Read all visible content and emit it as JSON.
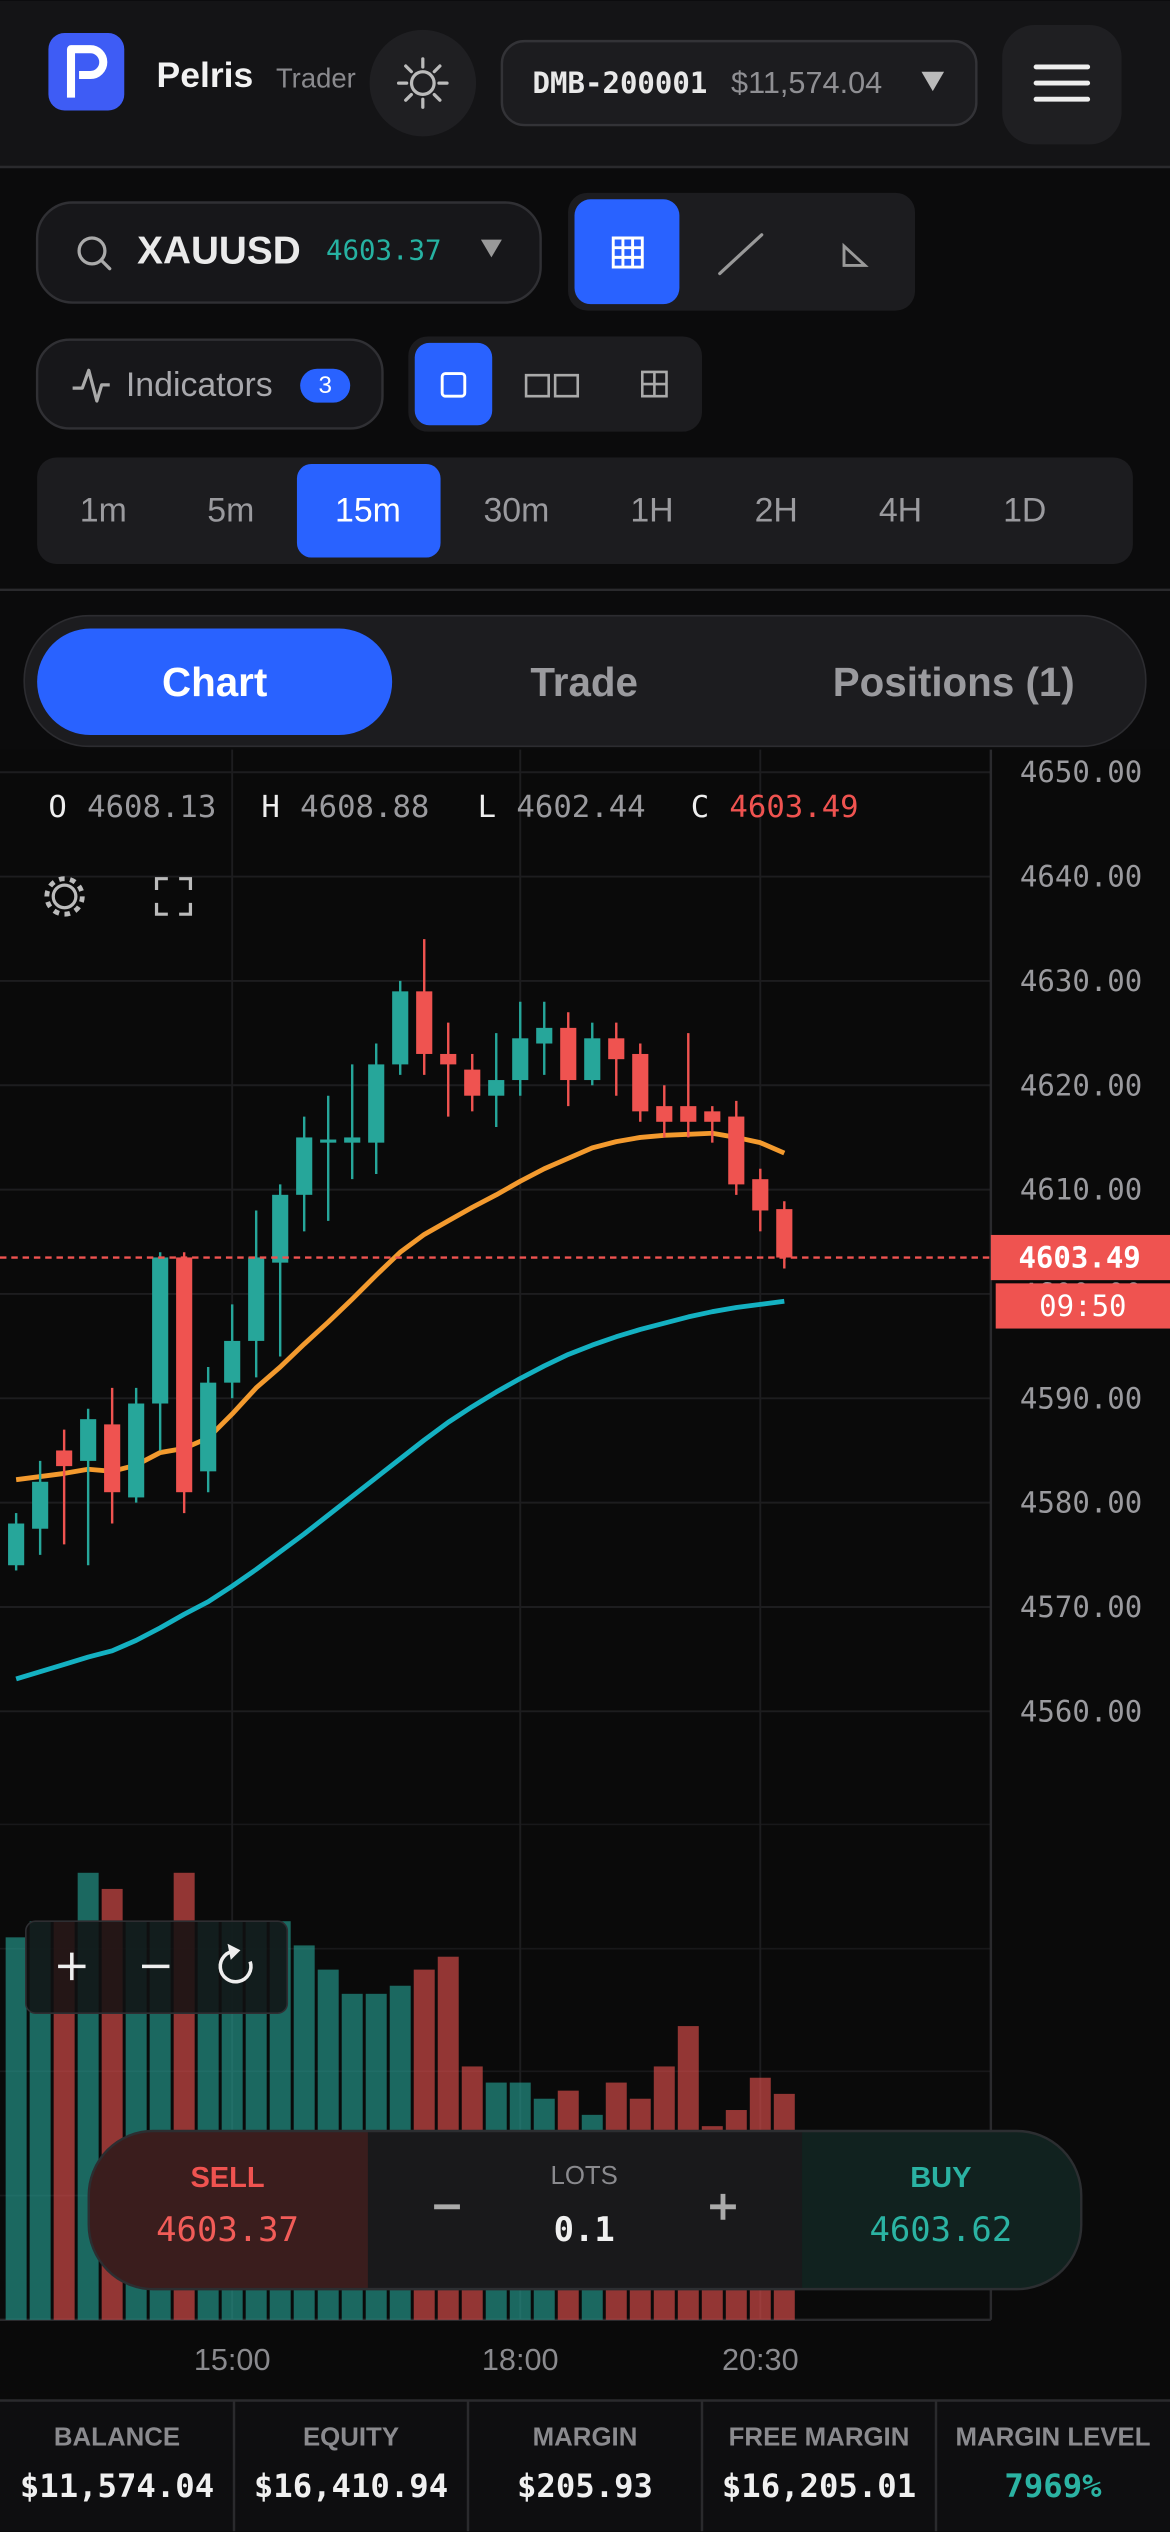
{
  "header": {
    "brand": "Pelris",
    "brand_sub": "Trader",
    "account_id": "DMB-200001",
    "account_balance": "$11,574.04"
  },
  "toolbar": {
    "symbol": "XAUUSD",
    "symbol_price": "4603.37",
    "indicators_label": "Indicators",
    "indicators_count": 3,
    "timeframes": [
      "1m",
      "5m",
      "15m",
      "30m",
      "1H",
      "2H",
      "4H",
      "1D"
    ]
  },
  "tabs": [
    "Chart",
    "Trade",
    "Positions (1)"
  ],
  "chart_data": {
    "type": "candlestick",
    "ohlc_labels": [
      "O",
      "H",
      "L",
      "C"
    ],
    "categories": [
      null,
      null,
      null,
      null,
      null,
      null,
      null,
      null,
      null,
      "15:00",
      null,
      null,
      null,
      null,
      null,
      null,
      null,
      null,
      null,
      null,
      null,
      "18:00",
      null,
      null,
      null,
      null,
      null,
      null,
      null,
      null,
      null,
      "20:30",
      null
    ],
    "open": [
      4574,
      4577.5,
      4585,
      4584,
      4587.5,
      4580.5,
      4589.5,
      4603.5,
      4583,
      4591.5,
      4595.5,
      4603,
      4609.5,
      4614.5,
      4614.5,
      4614.5,
      4622,
      4629,
      4623,
      4621.5,
      4619,
      4620.5,
      4624,
      4625.5,
      4620.5,
      4624.5,
      4623,
      4618,
      4618,
      4617.5,
      4617,
      4611,
      4608.13
    ],
    "high": [
      4579,
      4584,
      4587,
      4589,
      4591,
      4591,
      4604,
      4604,
      4593,
      4599,
      4608,
      4610.5,
      4617,
      4619,
      4622,
      4624,
      4630,
      4634,
      4626,
      4623,
      4625,
      4628,
      4628,
      4627,
      4626,
      4626,
      4624,
      4620,
      4625,
      4618,
      4618.5,
      4612,
      4608.88
    ],
    "low": [
      4573.5,
      4575,
      4576,
      4574,
      4578,
      4580,
      4585,
      4579,
      4581,
      4590,
      4592,
      4594,
      4606,
      4607,
      4611,
      4611.5,
      4621,
      4621,
      4617,
      4617.5,
      4616,
      4619,
      4621,
      4618,
      4620,
      4619,
      4616.5,
      4615,
      4615,
      4614.5,
      4609.5,
      4606,
      4602.44
    ],
    "close": [
      4578,
      4582,
      4583.5,
      4588,
      4581,
      4589.5,
      4603.5,
      4581,
      4591.5,
      4595.5,
      4603.5,
      4609.5,
      4615,
      4614.8,
      4615,
      4622,
      4629,
      4623,
      4622,
      4619,
      4620.5,
      4624.5,
      4625.5,
      4620.5,
      4624.5,
      4622.5,
      4617.5,
      4616.5,
      4616.5,
      4616.5,
      4610.5,
      4608,
      4603.49
    ],
    "up_color": "#26a69a",
    "down_color": "#ef5350",
    "lines": [
      {
        "color": "#f39a2e",
        "values": [
          4582.2,
          4582.5,
          4582.8,
          4583.2,
          4583.0,
          4583.6,
          4584.8,
          4585.2,
          4586.2,
          4588.5,
          4591,
          4593,
          4595.2,
          4597.3,
          4599.5,
          4601.8,
          4604,
          4605.7,
          4607,
          4608.3,
          4609.5,
          4610.8,
          4612,
          4613,
          4614,
          4614.6,
          4615,
          4615.2,
          4615.3,
          4615.4,
          4615,
          4614.5,
          4613.5
        ]
      },
      {
        "color": "#14b1c2",
        "values": [
          4563.1,
          4563.8,
          4564.5,
          4565.2,
          4565.8,
          4566.8,
          4568,
          4569.3,
          4570.5,
          4572,
          4573.6,
          4575.3,
          4577,
          4578.8,
          4580.6,
          4582.4,
          4584.2,
          4586,
          4587.7,
          4589.2,
          4590.6,
          4591.9,
          4593.1,
          4594.2,
          4595.1,
          4595.9,
          4596.6,
          4597.2,
          4597.8,
          4598.3,
          4598.7,
          4599.0,
          4599.3
        ]
      }
    ],
    "volume": [
      237,
      247,
      247,
      277,
      267,
      247,
      247,
      277,
      247,
      247,
      247,
      247,
      232,
      217,
      202,
      202,
      207,
      217,
      225,
      157,
      147,
      147,
      137,
      142,
      127,
      147,
      137,
      157,
      182,
      120,
      130,
      150,
      140
    ],
    "volume_ylim": [
      0,
      327
    ],
    "ylim": [
      4552.26,
      4652.17
    ],
    "yticks": [
      {
        "value": 4560,
        "label": "4560.00"
      },
      {
        "value": 4570,
        "label": "4570.00"
      },
      {
        "value": 4580,
        "label": "4580.00"
      },
      {
        "value": 4590,
        "label": "4590.00"
      },
      {
        "value": 4600,
        "label": "4600.00"
      },
      {
        "value": 4610,
        "label": "4610.00"
      },
      {
        "value": 4620,
        "label": "4620.00"
      },
      {
        "value": 4630,
        "label": "4630.00"
      },
      {
        "value": 4640,
        "label": "4640.00"
      },
      {
        "value": 4650,
        "label": "4650.00"
      }
    ],
    "countdown": "09:50",
    "grid": true
  },
  "trade_panel": {
    "sell_label": "SELL",
    "sell_price": "4603.37",
    "lots_label": "LOTS",
    "lots": "0.1",
    "buy_label": "BUY",
    "buy_price": "4603.62"
  },
  "account_stats": [
    {
      "label": "BALANCE",
      "value": "$11,574.04"
    },
    {
      "label": "EQUITY",
      "value": "$16,410.94"
    },
    {
      "label": "MARGIN",
      "value": "$205.93"
    },
    {
      "label": "FREE MARGIN",
      "value": "$16,205.01"
    },
    {
      "label": "MARGIN LEVEL",
      "value": "7969%"
    }
  ]
}
